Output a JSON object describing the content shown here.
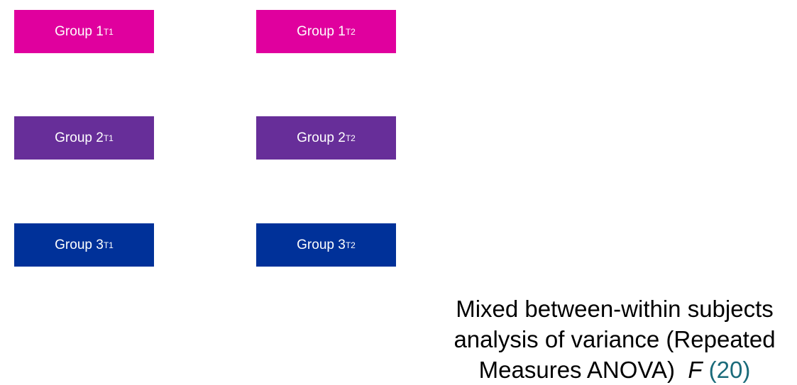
{
  "boxes": [
    {
      "label": "Group 1",
      "sub": "T1",
      "color": "#e0009e"
    },
    {
      "label": "Group 1",
      "sub": "T2",
      "color": "#e0009e"
    },
    {
      "label": "Group 2",
      "sub": "T1",
      "color": "#672e99"
    },
    {
      "label": "Group 2",
      "sub": "T2",
      "color": "#672e99"
    },
    {
      "label": "Group 3",
      "sub": "T1",
      "color": "#003199"
    },
    {
      "label": "Group 3",
      "sub": "T2",
      "color": "#003199"
    }
  ],
  "caption": {
    "line1": "Mixed between-within subjects",
    "line2": "analysis of variance (Repeated",
    "line3": "Measures ANOVA)",
    "stat_symbol": "F",
    "stat_value": "(20)"
  }
}
